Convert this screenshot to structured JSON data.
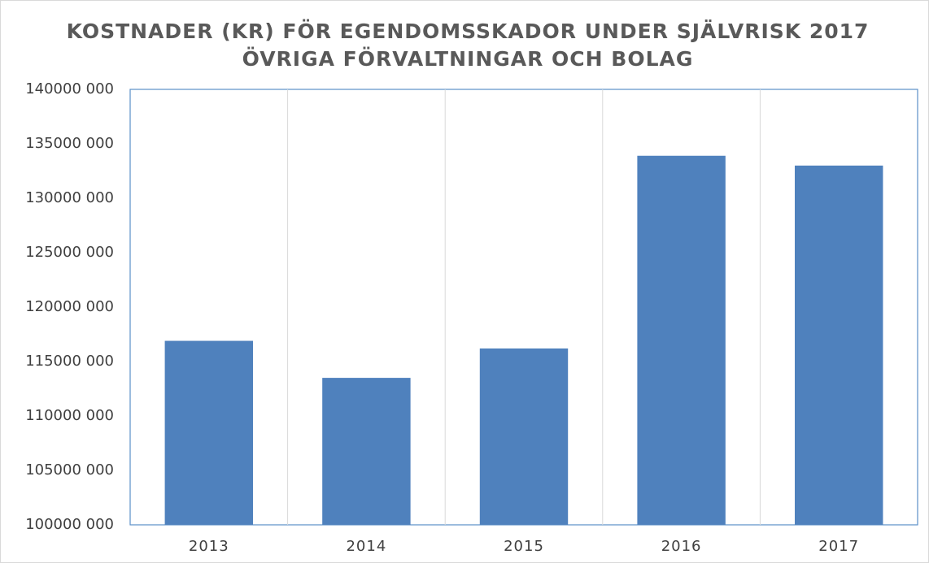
{
  "chart_data": {
    "type": "bar",
    "title": "KOSTNADER (KR) FÖR EGENDOMSSKADOR UNDER SJÄLVRISK 2017",
    "subtitle": "ÖVRIGA FÖRVALTNINGAR OCH BOLAG",
    "categories": [
      "2013",
      "2014",
      "2015",
      "2016",
      "2017"
    ],
    "values": [
      116900000,
      113500000,
      116200000,
      133900000,
      133000000
    ],
    "color": "#4f81bd",
    "ylim": [
      100000000,
      140000000
    ],
    "yticks": [
      {
        "value": 100000000,
        "label": "100000 000"
      },
      {
        "value": 105000000,
        "label": "105000 000"
      },
      {
        "value": 110000000,
        "label": "110000 000"
      },
      {
        "value": 115000000,
        "label": "115000 000"
      },
      {
        "value": 120000000,
        "label": "120000 000"
      },
      {
        "value": 125000000,
        "label": "125000 000"
      },
      {
        "value": 130000000,
        "label": "130000 000"
      },
      {
        "value": 135000000,
        "label": "135000 000"
      },
      {
        "value": 140000000,
        "label": "140000 000"
      }
    ],
    "grid": false
  }
}
